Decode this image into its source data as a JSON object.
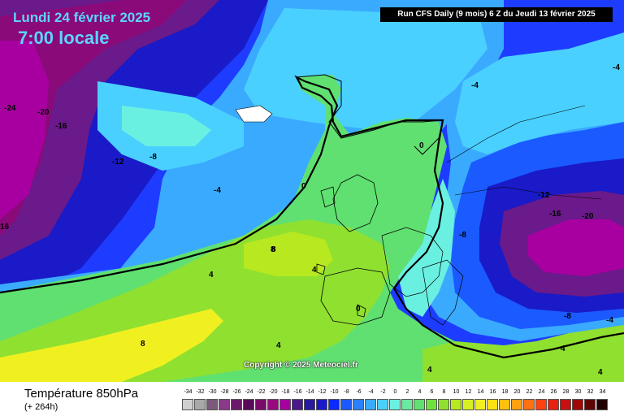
{
  "header": {
    "date": "Lundi 24 février 2025",
    "time": "7:00 locale",
    "run_info": "Run CFS Daily (9 mois) 6 Z du Jeudi 13 février 2025"
  },
  "footer": {
    "title": "Température 850hPa",
    "subtitle": "(+ 264h)",
    "copyright": "Copyright © 2025 Meteociel.fr"
  },
  "legend": {
    "values": [
      "-34",
      "-32",
      "-30",
      "-28",
      "-26",
      "-24",
      "-22",
      "-20",
      "-18",
      "-16",
      "-14",
      "-12",
      "-10",
      "-8",
      "-6",
      "-4",
      "-2",
      "0",
      "2",
      "4",
      "6",
      "8",
      "10",
      "12",
      "14",
      "16",
      "18",
      "20",
      "22",
      "24",
      "26",
      "28",
      "30",
      "32",
      "34"
    ],
    "colors": [
      "#d0d0d0",
      "#a8a8a8",
      "#7a5a7a",
      "#8a3a8a",
      "#6a1a6a",
      "#5a0a5a",
      "#7a0a6a",
      "#980a80",
      "#a800a0",
      "#4a1a8a",
      "#2a1aa0",
      "#1a1ac8",
      "#0a2aff",
      "#1a5aff",
      "#2a80ff",
      "#3aaaff",
      "#4ad0ff",
      "#6af0e0",
      "#6aeaa0",
      "#60e070",
      "#70e040",
      "#90e030",
      "#b8e820",
      "#d8f020",
      "#f0f020",
      "#ffe010",
      "#ffc010",
      "#ffa010",
      "#ff7010",
      "#ff4010",
      "#e82010",
      "#c81010",
      "#a00808",
      "#600404",
      "#200000"
    ]
  },
  "isotherm_labels": [
    {
      "text": "-24"
    },
    {
      "text": "-20"
    },
    {
      "text": "-16"
    },
    {
      "text": "-12"
    },
    {
      "text": "-8"
    },
    {
      "text": "-4"
    },
    {
      "text": "0"
    },
    {
      "text": "8"
    },
    {
      "text": "4"
    },
    {
      "text": "4"
    },
    {
      "text": "0"
    },
    {
      "text": "8"
    },
    {
      "text": "4"
    },
    {
      "text": "-4"
    },
    {
      "text": "0"
    },
    {
      "text": "-8"
    },
    {
      "text": "-12"
    },
    {
      "text": "-16"
    },
    {
      "text": "-20"
    },
    {
      "text": "-8"
    },
    {
      "text": "-4"
    },
    {
      "text": "4"
    },
    {
      "text": "4"
    },
    {
      "text": "-4"
    },
    {
      "text": "16"
    },
    {
      "text": "4"
    },
    {
      "text": "8"
    }
  ]
}
